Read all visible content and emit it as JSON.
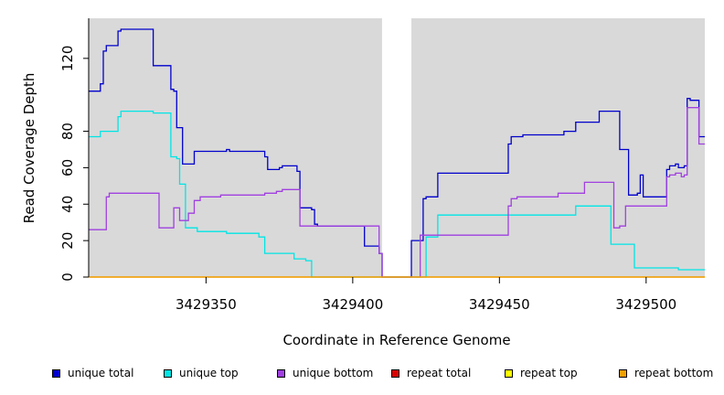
{
  "chart_data": {
    "type": "line",
    "xlabel": "Coordinate in Reference Genome",
    "ylabel": "Read Coverage Depth",
    "xlim": [
      3429310,
      3429520
    ],
    "ylim": [
      0,
      142
    ],
    "xticks": [
      3429350,
      3429400,
      3429450,
      3429500
    ],
    "xtick_labels": [
      "3429350",
      "3429400",
      "3429450",
      "3429500"
    ],
    "yticks": [
      0,
      20,
      40,
      60,
      80,
      120
    ],
    "ytick_labels": [
      "0",
      "20",
      "40",
      "60",
      "80",
      "120"
    ],
    "gap_region": [
      3429410,
      3429420
    ],
    "grid": false,
    "legend_position": "bottom",
    "colors": {
      "panel_background": "#d9d9d9",
      "gap_background": "#ffffff"
    },
    "series": [
      {
        "name": "unique total",
        "color": "#0000cc",
        "points": [
          [
            3429310,
            102
          ],
          [
            3429314,
            106
          ],
          [
            3429315,
            124
          ],
          [
            3429316,
            127
          ],
          [
            3429320,
            135
          ],
          [
            3429321,
            136
          ],
          [
            3429332,
            116
          ],
          [
            3429338,
            103
          ],
          [
            3429339,
            102
          ],
          [
            3429340,
            82
          ],
          [
            3429342,
            62
          ],
          [
            3429346,
            69
          ],
          [
            3429357,
            70
          ],
          [
            3429358,
            69
          ],
          [
            3429370,
            66
          ],
          [
            3429371,
            59
          ],
          [
            3429375,
            60
          ],
          [
            3429376,
            61
          ],
          [
            3429381,
            58
          ],
          [
            3429382,
            38
          ],
          [
            3429386,
            37
          ],
          [
            3429387,
            29
          ],
          [
            3429388,
            28
          ],
          [
            3429404,
            17
          ],
          [
            3429409,
            13
          ],
          [
            3429410,
            0
          ],
          [
            3429419,
            0
          ],
          [
            3429420,
            20
          ],
          [
            3429424,
            43
          ],
          [
            3429425,
            44
          ],
          [
            3429429,
            57
          ],
          [
            3429453,
            73
          ],
          [
            3429454,
            77
          ],
          [
            3429458,
            78
          ],
          [
            3429472,
            80
          ],
          [
            3429476,
            85
          ],
          [
            3429484,
            91
          ],
          [
            3429491,
            70
          ],
          [
            3429494,
            45
          ],
          [
            3429497,
            46
          ],
          [
            3429498,
            56
          ],
          [
            3429499,
            44
          ],
          [
            3429507,
            59
          ],
          [
            3429508,
            61
          ],
          [
            3429510,
            62
          ],
          [
            3429511,
            60
          ],
          [
            3429513,
            61
          ],
          [
            3429514,
            98
          ],
          [
            3429515,
            97
          ],
          [
            3429518,
            77
          ],
          [
            3429525,
            77
          ]
        ]
      },
      {
        "name": "unique top",
        "color": "#00e5e5",
        "points": [
          [
            3429310,
            77
          ],
          [
            3429314,
            80
          ],
          [
            3429320,
            88
          ],
          [
            3429321,
            91
          ],
          [
            3429332,
            90
          ],
          [
            3429338,
            66
          ],
          [
            3429340,
            65
          ],
          [
            3429341,
            51
          ],
          [
            3429343,
            27
          ],
          [
            3429347,
            25
          ],
          [
            3429357,
            24
          ],
          [
            3429368,
            22
          ],
          [
            3429370,
            13
          ],
          [
            3429380,
            10
          ],
          [
            3429384,
            9
          ],
          [
            3429386,
            0
          ],
          [
            3429425,
            22
          ],
          [
            3429429,
            34
          ],
          [
            3429469,
            34
          ],
          [
            3429476,
            39
          ],
          [
            3429487,
            39
          ],
          [
            3429488,
            18
          ],
          [
            3429494,
            18
          ],
          [
            3429496,
            5
          ],
          [
            3429510,
            5
          ],
          [
            3429511,
            4
          ],
          [
            3429525,
            4
          ]
        ]
      },
      {
        "name": "unique bottom",
        "color": "#a040e0",
        "points": [
          [
            3429310,
            26
          ],
          [
            3429316,
            44
          ],
          [
            3429317,
            46
          ],
          [
            3429333,
            46
          ],
          [
            3429334,
            27
          ],
          [
            3429339,
            38
          ],
          [
            3429341,
            31
          ],
          [
            3429344,
            35
          ],
          [
            3429346,
            42
          ],
          [
            3429348,
            44
          ],
          [
            3429355,
            45
          ],
          [
            3429370,
            46
          ],
          [
            3429374,
            47
          ],
          [
            3429376,
            48
          ],
          [
            3429382,
            28
          ],
          [
            3429388,
            28
          ],
          [
            3429409,
            13
          ],
          [
            3429410,
            0
          ],
          [
            3429422,
            0
          ],
          [
            3429423,
            23
          ],
          [
            3429453,
            39
          ],
          [
            3429454,
            43
          ],
          [
            3429456,
            44
          ],
          [
            3429470,
            46
          ],
          [
            3429476,
            46
          ],
          [
            3429479,
            52
          ],
          [
            3429489,
            27
          ],
          [
            3429491,
            28
          ],
          [
            3429493,
            39
          ],
          [
            3429498,
            39
          ],
          [
            3429507,
            55
          ],
          [
            3429508,
            56
          ],
          [
            3429510,
            57
          ],
          [
            3429512,
            55
          ],
          [
            3429513,
            56
          ],
          [
            3429514,
            93
          ],
          [
            3429518,
            73
          ],
          [
            3429525,
            73
          ]
        ]
      },
      {
        "name": "repeat total",
        "color": "#dd0000",
        "points": [
          [
            3429310,
            0
          ],
          [
            3429525,
            0
          ]
        ]
      },
      {
        "name": "repeat top",
        "color": "#ffff00",
        "points": [
          [
            3429310,
            0
          ],
          [
            3429525,
            0
          ]
        ]
      },
      {
        "name": "repeat bottom",
        "color": "#f0a000",
        "points": [
          [
            3429310,
            0
          ],
          [
            3429525,
            0
          ]
        ]
      }
    ],
    "legend": [
      {
        "label": "unique total",
        "color": "#0000cc"
      },
      {
        "label": "unique top",
        "color": "#00e5e5"
      },
      {
        "label": "unique bottom",
        "color": "#a040e0"
      },
      {
        "label": "repeat total",
        "color": "#dd0000"
      },
      {
        "label": "repeat top",
        "color": "#ffff00"
      },
      {
        "label": "repeat bottom",
        "color": "#f0a000"
      }
    ]
  }
}
